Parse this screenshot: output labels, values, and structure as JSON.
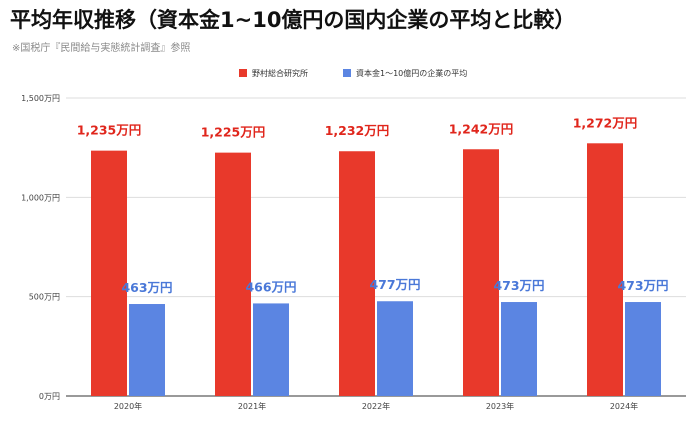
{
  "title": "平均年収推移（資本金1~10億円の国内企業の平均と比較）",
  "source": "※国税庁『民間給与実態統計調査』参照",
  "chart_data": {
    "type": "bar",
    "categories": [
      "2020年",
      "2021年",
      "2022年",
      "2023年",
      "2024年"
    ],
    "series": [
      {
        "name": "野村総合研究所",
        "values": [
          1235,
          1225,
          1232,
          1242,
          1272
        ],
        "labels": [
          "1,235万円",
          "1,225万円",
          "1,232万円",
          "1,242万円",
          "1,272万円"
        ],
        "color": "#e8392b",
        "label_color": "#e0261c"
      },
      {
        "name": "資本金1〜10億円の企業の平均",
        "values": [
          463,
          466,
          477,
          473,
          473
        ],
        "labels": [
          "463万円",
          "466万円",
          "477万円",
          "473万円",
          "473万円"
        ],
        "color": "#5b85e2",
        "label_color": "#4a78d8"
      }
    ],
    "ylim": [
      0,
      1500
    ],
    "yticks": [
      0,
      500,
      1000,
      1500
    ],
    "ytick_labels": [
      "0万円",
      "500万円",
      "1,000万円",
      "1,500万円"
    ],
    "legend_position": "top",
    "grid": true
  }
}
